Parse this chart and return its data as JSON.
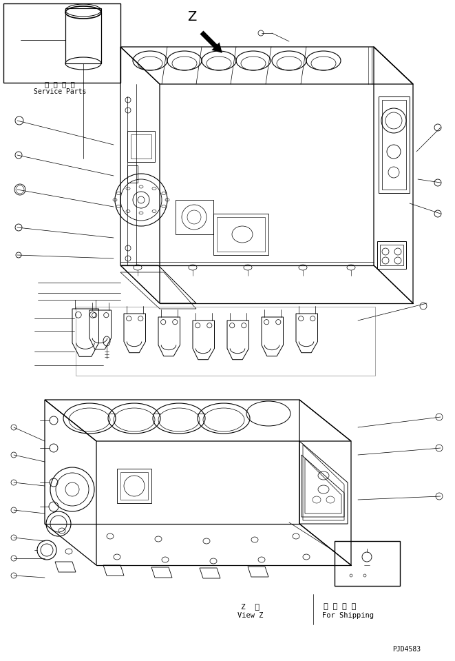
{
  "bg_color": "#ffffff",
  "line_color": "#000000",
  "fig_width": 6.61,
  "fig_height": 9.59,
  "dpi": 100,
  "service_parts_text_jp": "捕 給 専 用",
  "service_parts_text_en": "Service Parts",
  "view_z_text_jp": "Z  視",
  "view_z_text_en": "View Z",
  "shipping_text_jp": "運 携 部 品",
  "shipping_text_en": "For Shipping",
  "part_number": "PJD4583",
  "z_label": "Z"
}
